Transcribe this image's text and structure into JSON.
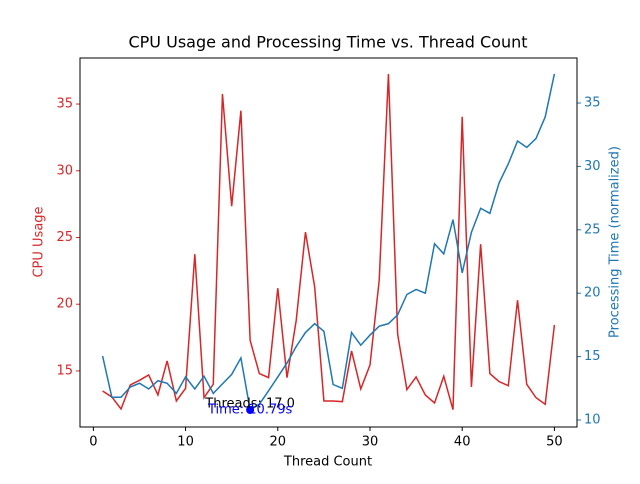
{
  "chart_data": {
    "type": "line",
    "title": "CPU Usage and Processing Time vs. Thread Count",
    "xlabel": "Thread Count",
    "ylabel": "CPU Usage",
    "y2label": "Processing Time (normalized)",
    "x": [
      1,
      2,
      3,
      4,
      5,
      6,
      7,
      8,
      9,
      10,
      11,
      12,
      13,
      14,
      15,
      16,
      17,
      18,
      19,
      20,
      21,
      22,
      23,
      24,
      25,
      26,
      27,
      28,
      29,
      30,
      31,
      32,
      33,
      34,
      35,
      36,
      37,
      38,
      39,
      40,
      41,
      42,
      43,
      44,
      45,
      46,
      47,
      48,
      49,
      50
    ],
    "series": [
      {
        "name": "CPU Usage",
        "color": "#d62728",
        "axis": "y",
        "values": [
          13.5,
          13.05,
          12.15,
          13.95,
          14.3,
          14.7,
          13.2,
          15.75,
          12.75,
          13.7,
          23.75,
          13.0,
          14.0,
          35.75,
          27.35,
          34.5,
          17.3,
          14.8,
          14.5,
          21.2,
          14.5,
          18.8,
          25.4,
          21.3,
          12.75,
          12.75,
          12.7,
          16.5,
          13.65,
          15.45,
          21.8,
          37.25,
          17.75,
          13.6,
          14.55,
          13.2,
          12.6,
          14.6,
          12.1,
          34.05,
          13.8,
          24.5,
          14.8,
          14.2,
          13.9,
          20.3,
          14.0,
          13.0,
          12.5,
          18.45
        ]
      },
      {
        "name": "Processing Time (normalized)",
        "color": "#1f77b4",
        "axis": "y2",
        "values": [
          15.05,
          11.8,
          11.8,
          12.6,
          12.9,
          12.45,
          13.1,
          12.9,
          12.1,
          13.4,
          12.45,
          13.45,
          12.1,
          12.85,
          13.6,
          14.9,
          10.79,
          11.25,
          12.3,
          13.4,
          14.5,
          15.8,
          16.9,
          17.6,
          17.0,
          12.8,
          12.5,
          16.9,
          15.9,
          16.7,
          17.4,
          17.6,
          18.3,
          19.9,
          20.3,
          20.0,
          23.9,
          23.1,
          25.8,
          21.6,
          24.8,
          26.7,
          26.3,
          28.7,
          30.2,
          32.0,
          31.5,
          32.2,
          33.9,
          37.3
        ]
      }
    ],
    "xlim": [
      -1.45,
      52.45
    ],
    "xticks": [
      0,
      10,
      20,
      30,
      40,
      50
    ],
    "ylim": [
      10.8,
      38.45
    ],
    "yticks": [
      15,
      20,
      25,
      30,
      35
    ],
    "y2lim": [
      9.45,
      38.55
    ],
    "y2ticks": [
      10,
      15,
      20,
      25,
      30,
      35
    ],
    "annotation_point": {
      "x": 17,
      "y": 10.79,
      "color": "#0000ff"
    },
    "annotations": [
      {
        "text": "Threads: 17.0",
        "color": "#000000"
      },
      {
        "text": "Time: 10.79s",
        "color": "#0000ff"
      }
    ]
  }
}
